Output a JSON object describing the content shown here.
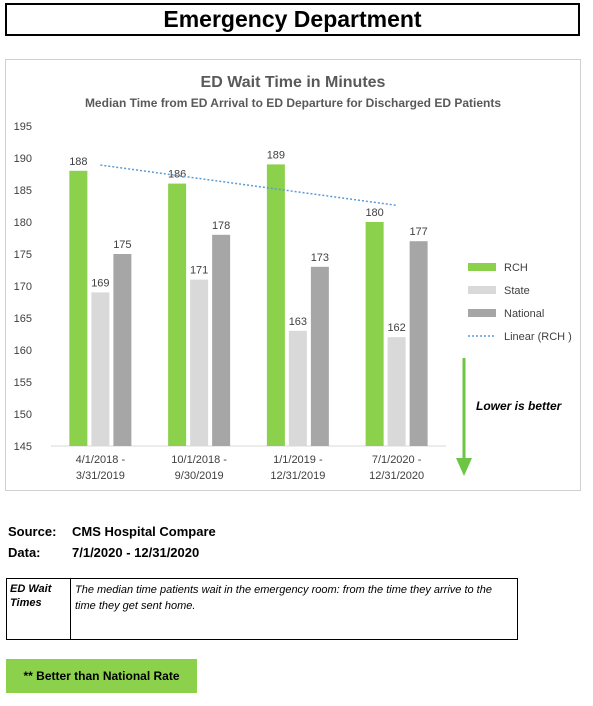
{
  "page_title": "Emergency Department",
  "source": {
    "source_label": "Source:",
    "source_value": "CMS Hospital Compare",
    "data_label": "Data:",
    "data_value": "7/1/2020 - 12/31/2020"
  },
  "definition": {
    "term": "ED Wait Times",
    "text": "The median time patients wait in the emergency room: from the time they arrive to the time they get sent home."
  },
  "badge": {
    "label": "** Better than National Rate"
  },
  "colors": {
    "rch": "#8bd14b",
    "state": "#d9d9d9",
    "national": "#a6a6a6",
    "trend": "#5b9bd5",
    "arrow": "#6cc644"
  },
  "chart_data": {
    "type": "bar",
    "title": "ED Wait Time in Minutes",
    "subtitle": "Median Time from ED Arrival to ED Departure for Discharged ED Patients",
    "categories": [
      [
        "4/1/2018 -",
        "3/31/2019"
      ],
      [
        "10/1/2018 -",
        "9/30/2019"
      ],
      [
        "1/1/2019 -",
        "12/31/2019"
      ],
      [
        "7/1/2020 -",
        "12/31/2020"
      ]
    ],
    "series": [
      {
        "name": "RCH",
        "values": [
          188,
          186,
          189,
          180
        ]
      },
      {
        "name": "State",
        "values": [
          169,
          171,
          163,
          162
        ]
      },
      {
        "name": "National",
        "values": [
          175,
          178,
          173,
          177
        ]
      }
    ],
    "trendline": {
      "name": "Linear (RCH )",
      "of_series": "RCH",
      "type": "linear"
    },
    "ylim": [
      145,
      195
    ],
    "yticks": [
      145,
      150,
      155,
      160,
      165,
      170,
      175,
      180,
      185,
      190,
      195
    ],
    "grid": false,
    "legend": "right",
    "annotation": "Lower is better"
  }
}
